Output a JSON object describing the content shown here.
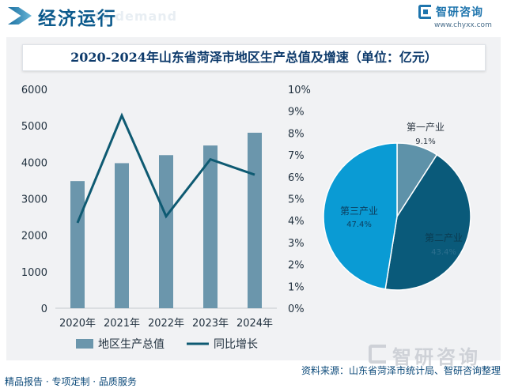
{
  "header": {
    "title": "经济运行",
    "ghost": "ld demand"
  },
  "brand": {
    "name": "智研咨询",
    "url": "www.chyxx.com",
    "color": "#1d74ad"
  },
  "footer": {
    "tagline": "精品报告 · 专项定制 · 品质服务",
    "source": "资料来源：山东省菏泽市统计局、智研咨询整理"
  },
  "chart_data": [
    {
      "type": "bar",
      "title": "2020-2024年山东省菏泽市地区生产总值及增速（单位：亿元）",
      "categories": [
        "2020年",
        "2021年",
        "2022年",
        "2023年",
        "2024年"
      ],
      "series": [
        {
          "name": "地区生产总值",
          "type": "bar",
          "axis": "left",
          "color": "#6b96ac",
          "values": [
            3484,
            3976,
            4196,
            4460,
            4810
          ]
        },
        {
          "name": "同比增长",
          "type": "line",
          "axis": "right",
          "color": "#0e5a72",
          "values": [
            3.9,
            8.8,
            4.2,
            6.8,
            6.1
          ]
        }
      ],
      "y_left": {
        "min": 0,
        "max": 6000,
        "ticks": [
          "0",
          "1000",
          "2000",
          "3000",
          "4000",
          "5000",
          "6000"
        ]
      },
      "y_right": {
        "min": 0,
        "max": 10,
        "ticks": [
          "0%",
          "1%",
          "2%",
          "3%",
          "4%",
          "5%",
          "6%",
          "7%",
          "8%",
          "9%",
          "10%"
        ]
      },
      "legend": [
        "地区生产总值",
        "同比增长"
      ]
    },
    {
      "type": "pie",
      "slices": [
        {
          "label": "第一产业",
          "value_label": "9.1%",
          "value": 9.1,
          "color": "#5e92a9"
        },
        {
          "label": "第二产业",
          "value_label": "43.4%",
          "value": 43.4,
          "color": "#0a5a7a"
        },
        {
          "label": "第三产业",
          "value_label": "47.4%",
          "value": 47.4,
          "color": "#0a9bd4"
        }
      ]
    }
  ]
}
